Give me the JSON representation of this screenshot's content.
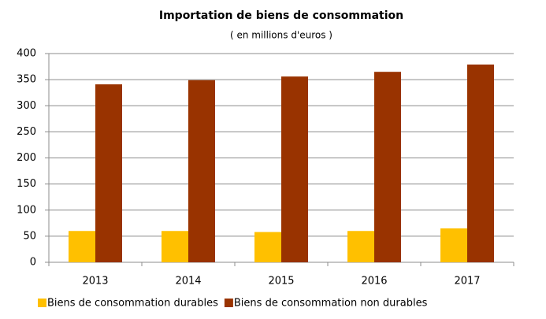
{
  "chart_data": {
    "type": "bar",
    "title": "Importation de biens de consommation",
    "subtitle": "( en millions d'euros )",
    "categories": [
      "2013",
      "2014",
      "2015",
      "2016",
      "2017"
    ],
    "series": [
      {
        "name": "Biens de consommation durables",
        "color": "#FFC000",
        "values": [
          60,
          60,
          58,
          60,
          65
        ]
      },
      {
        "name": "Biens de consommation non durables",
        "color": "#993300",
        "values": [
          341,
          349,
          356,
          365,
          379
        ]
      }
    ],
    "ylim": [
      0,
      400
    ],
    "yticks": [
      0,
      50,
      100,
      150,
      200,
      250,
      300,
      350,
      400
    ],
    "grid": true,
    "legend": "bottom"
  }
}
